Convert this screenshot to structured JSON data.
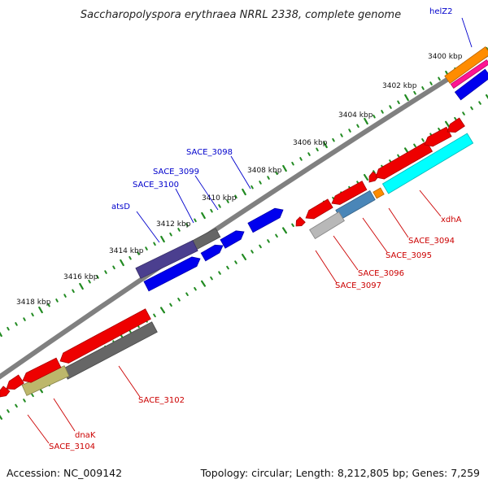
{
  "title": "Saccharopolyspora erythraea NRRL 2338, complete genome",
  "footer": {
    "accession": "Accession: NC_009142",
    "summary": "Topology: circular; Length: 8,212,805 bp; Genes: 7,259"
  },
  "tick_labels": [
    "3400 kbp",
    "3402 kbp",
    "3404 kbp",
    "3406 kbp",
    "3408 kbp",
    "3410 kbp",
    "3412 kbp",
    "3414 kbp",
    "3416 kbp",
    "3418 kbp"
  ],
  "colors": {
    "backbone": "#808080",
    "tick": "#228b22",
    "plus_label": "#0000cc",
    "minus_label": "#cc0000",
    "blue": "#0000ee",
    "red": "#ee0000",
    "gray": "#666666",
    "navy": "#4b3f8f",
    "cyan": "#00ffff",
    "steel": "#4a86b8",
    "orange": "#ff8c00",
    "khaki": "#bdb76b",
    "magenta": "#ff1493",
    "silver": "#b8b8b8"
  },
  "plus_labels": [
    "helZ2",
    "SACE_3098",
    "SACE_3099",
    "SACE_3100",
    "atsD"
  ],
  "minus_labels": [
    "xdhA",
    "SACE_3094",
    "SACE_3095",
    "SACE_3096",
    "SACE_3097",
    "SACE_3102",
    "dnaK",
    "SACE_3104"
  ]
}
